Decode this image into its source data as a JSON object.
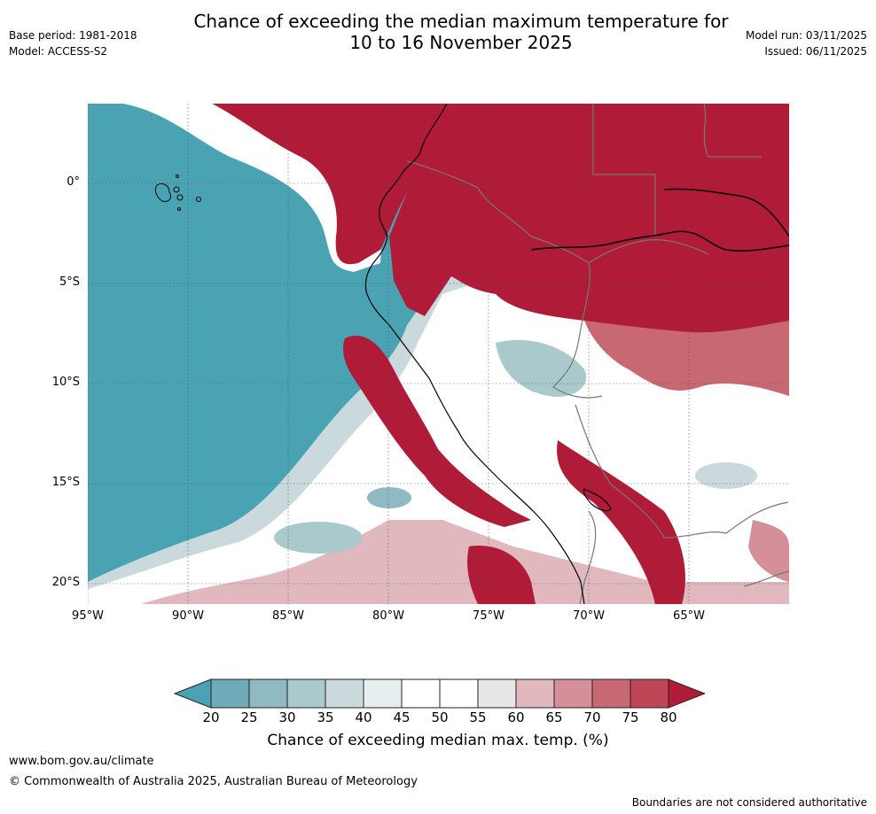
{
  "header": {
    "title_line1": "Chance of exceeding the median maximum temperature for",
    "title_line2": "10 to 16 November 2025",
    "base_period": "Base period: 1981-2018",
    "model": "Model: ACCESS-S2",
    "model_run": "Model run: 03/11/2025",
    "issued": "Issued: 06/11/2025"
  },
  "map": {
    "lat_labels": [
      "0°",
      "5°S",
      "10°S",
      "15°S",
      "20°S"
    ],
    "lon_labels": [
      "95°W",
      "90°W",
      "85°W",
      "80°W",
      "75°W",
      "70°W",
      "65°W"
    ]
  },
  "colorbar": {
    "ticks": [
      "20",
      "25",
      "30",
      "35",
      "40",
      "45",
      "50",
      "55",
      "60",
      "65",
      "70",
      "75",
      "80"
    ],
    "label": "Chance of exceeding median max. temp. (%)",
    "colors": [
      "#4aa3b3",
      "#6faab8",
      "#8fbac4",
      "#aac9cd",
      "#c9d9dc",
      "#e8eff0",
      "#ffffff",
      "#ffffff",
      "#e8e6e6",
      "#e0b8bd",
      "#d48f98",
      "#c86872",
      "#be4553",
      "#b01b37"
    ]
  },
  "footer": {
    "url": "www.bom.gov.au/climate",
    "copyright": "© Commonwealth of Australia 2025, Australian Bureau of Meteorology",
    "disclaimer": "Boundaries are not considered authoritative"
  }
}
